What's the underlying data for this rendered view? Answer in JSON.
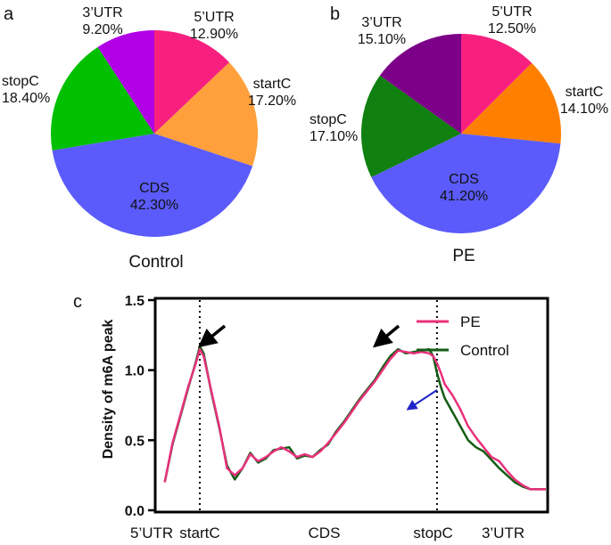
{
  "panels": {
    "a": "a",
    "b": "b",
    "c": "c"
  },
  "chart_data": [
    {
      "type": "pie",
      "panel": "a",
      "title": "Control",
      "slices": [
        {
          "name": "5’UTR",
          "pct_label": "12.90%",
          "value": 12.9,
          "color": "#f7207f"
        },
        {
          "name": "startC",
          "pct_label": "17.20%",
          "value": 17.2,
          "color": "#ffa03c"
        },
        {
          "name": "CDS",
          "pct_label": "42.30%",
          "value": 42.3,
          "color": "#5b5bfb"
        },
        {
          "name": "stopC",
          "pct_label": "18.40%",
          "value": 18.4,
          "color": "#00c000"
        },
        {
          "name": "3’UTR",
          "pct_label": "9.20%",
          "value": 9.2,
          "color": "#b100e6"
        }
      ]
    },
    {
      "type": "pie",
      "panel": "b",
      "title": "PE",
      "slices": [
        {
          "name": "5’UTR",
          "pct_label": "12.50%",
          "value": 12.5,
          "color": "#f7207f"
        },
        {
          "name": "startC",
          "pct_label": "14.10%",
          "value": 14.1,
          "color": "#ff8000"
        },
        {
          "name": "CDS",
          "pct_label": "41.20%",
          "value": 41.2,
          "color": "#5b5bfb"
        },
        {
          "name": "stopC",
          "pct_label": "17.10%",
          "value": 17.1,
          "color": "#108010"
        },
        {
          "name": "3’UTR",
          "pct_label": "15.10%",
          "value": 15.1,
          "color": "#7d0089"
        }
      ]
    },
    {
      "type": "line",
      "panel": "c",
      "xlabel": "",
      "ylabel": "Density of m6A peak",
      "ylim": [
        0,
        1.5
      ],
      "xlim": [
        0,
        1
      ],
      "yticks": [
        "0.0",
        "0.5",
        "1.0",
        "1.5"
      ],
      "region_labels": [
        {
          "label": "5’UTR",
          "x": 0.0
        },
        {
          "label": "startC",
          "x": 0.11
        },
        {
          "label": "CDS",
          "x": 0.43
        },
        {
          "label": "stopC",
          "x": 0.71
        },
        {
          "label": "3’UTR",
          "x": 0.89
        }
      ],
      "dotted_vlines_x": [
        0.11,
        0.72
      ],
      "series": [
        {
          "name": "PE",
          "color": "#e8317c",
          "x": [
            0.02,
            0.04,
            0.06,
            0.08,
            0.1,
            0.11,
            0.12,
            0.14,
            0.16,
            0.18,
            0.2,
            0.22,
            0.24,
            0.26,
            0.28,
            0.3,
            0.32,
            0.34,
            0.36,
            0.38,
            0.4,
            0.42,
            0.44,
            0.46,
            0.48,
            0.5,
            0.52,
            0.54,
            0.56,
            0.58,
            0.6,
            0.62,
            0.64,
            0.66,
            0.68,
            0.7,
            0.71,
            0.72,
            0.73,
            0.74,
            0.76,
            0.78,
            0.8,
            0.82,
            0.84,
            0.86,
            0.88,
            0.9,
            0.92,
            0.94,
            0.96,
            1.0
          ],
          "y": [
            0.2,
            0.48,
            0.68,
            0.88,
            1.05,
            1.15,
            1.1,
            0.85,
            0.6,
            0.3,
            0.25,
            0.3,
            0.4,
            0.35,
            0.38,
            0.42,
            0.45,
            0.42,
            0.38,
            0.4,
            0.38,
            0.42,
            0.48,
            0.55,
            0.62,
            0.7,
            0.78,
            0.85,
            0.92,
            1.0,
            1.08,
            1.14,
            1.13,
            1.12,
            1.13,
            1.12,
            1.1,
            1.05,
            0.98,
            0.9,
            0.82,
            0.72,
            0.6,
            0.52,
            0.45,
            0.38,
            0.35,
            0.28,
            0.22,
            0.18,
            0.15,
            0.15
          ]
        },
        {
          "name": "Control",
          "color": "#145c14",
          "x": [
            0.02,
            0.04,
            0.06,
            0.08,
            0.1,
            0.11,
            0.12,
            0.14,
            0.16,
            0.18,
            0.2,
            0.22,
            0.24,
            0.26,
            0.28,
            0.3,
            0.32,
            0.34,
            0.36,
            0.38,
            0.4,
            0.42,
            0.44,
            0.46,
            0.48,
            0.5,
            0.52,
            0.54,
            0.56,
            0.58,
            0.6,
            0.62,
            0.64,
            0.66,
            0.68,
            0.7,
            0.71,
            0.72,
            0.73,
            0.74,
            0.76,
            0.78,
            0.8,
            0.82,
            0.84,
            0.86,
            0.88,
            0.9,
            0.92,
            0.94,
            0.96,
            1.0
          ],
          "y": [
            0.2,
            0.47,
            0.67,
            0.87,
            1.06,
            1.17,
            1.12,
            0.84,
            0.59,
            0.32,
            0.22,
            0.3,
            0.41,
            0.34,
            0.37,
            0.43,
            0.44,
            0.45,
            0.37,
            0.39,
            0.38,
            0.43,
            0.47,
            0.56,
            0.63,
            0.71,
            0.79,
            0.86,
            0.93,
            1.02,
            1.1,
            1.15,
            1.12,
            1.13,
            1.14,
            1.15,
            1.1,
            0.98,
            0.88,
            0.8,
            0.7,
            0.6,
            0.5,
            0.45,
            0.42,
            0.36,
            0.3,
            0.25,
            0.2,
            0.17,
            0.15,
            0.15
          ]
        }
      ],
      "annotations": [
        {
          "type": "arrow",
          "color": "#000000",
          "points_to": "startC peak"
        },
        {
          "type": "arrow",
          "color": "#000000",
          "points_to": "stopC peak"
        },
        {
          "type": "arrow",
          "color": "#1f24c8",
          "points_to": "PE 3’UTR shoulder"
        }
      ]
    }
  ]
}
